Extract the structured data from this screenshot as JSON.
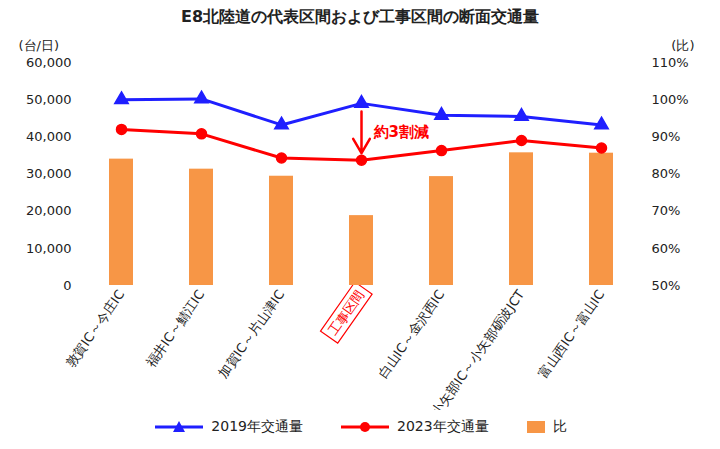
{
  "chart_data": {
    "type": "line",
    "title": "E8北陸道の代表区間および工事区間の断面交通量",
    "y_label": "(台/日)",
    "y2_label": "(比)",
    "categories": [
      "敦賀IC～今庄IC",
      "福井IC～鯖江IC",
      "加賀IC～片山津IC",
      "工事区間",
      "白山IC～金沢西IC",
      "小矢部IC～小矢部砺波JCT",
      "富山西IC～富山IC"
    ],
    "series": [
      {
        "name": "2019年交通量",
        "color": "#1f1fff",
        "marker": "triangle",
        "values": [
          50000,
          50200,
          43200,
          49000,
          45800,
          45500,
          43200
        ]
      },
      {
        "name": "2023年交通量",
        "color": "#ff0000",
        "marker": "circle",
        "values": [
          42000,
          40800,
          34300,
          33700,
          36300,
          39000,
          37000
        ]
      },
      {
        "name": "比",
        "type": "bar",
        "axis": "y2",
        "color": "#f79646",
        "values": [
          84,
          81.3,
          79.4,
          68.8,
          79.3,
          85.7,
          85.6
        ]
      }
    ],
    "ylim": [
      0,
      60000
    ],
    "yticks": [
      0,
      {
        "value": 10000,
        "label": "10,000"
      },
      {
        "value": 20000,
        "label": "20,000"
      },
      {
        "value": 30000,
        "label": "30,000"
      },
      {
        "value": 40000,
        "label": "40,000"
      },
      {
        "value": 50000,
        "label": "50,000"
      },
      {
        "value": 60000,
        "label": "60,000"
      }
    ],
    "y2lim": [
      50,
      110
    ],
    "y2ticks": [
      {
        "value": 50,
        "label": "50%"
      },
      {
        "value": 60,
        "label": "60%"
      },
      {
        "value": 70,
        "label": "70%"
      },
      {
        "value": 80,
        "label": "80%"
      },
      {
        "value": 90,
        "label": "90%"
      },
      {
        "value": 100,
        "label": "100%"
      },
      {
        "value": 110,
        "label": "110%"
      }
    ],
    "grid": false,
    "legend": "bottom",
    "annotations": [
      {
        "text": "約3割減",
        "category": "工事区間",
        "color": "#ff0000"
      }
    ]
  }
}
